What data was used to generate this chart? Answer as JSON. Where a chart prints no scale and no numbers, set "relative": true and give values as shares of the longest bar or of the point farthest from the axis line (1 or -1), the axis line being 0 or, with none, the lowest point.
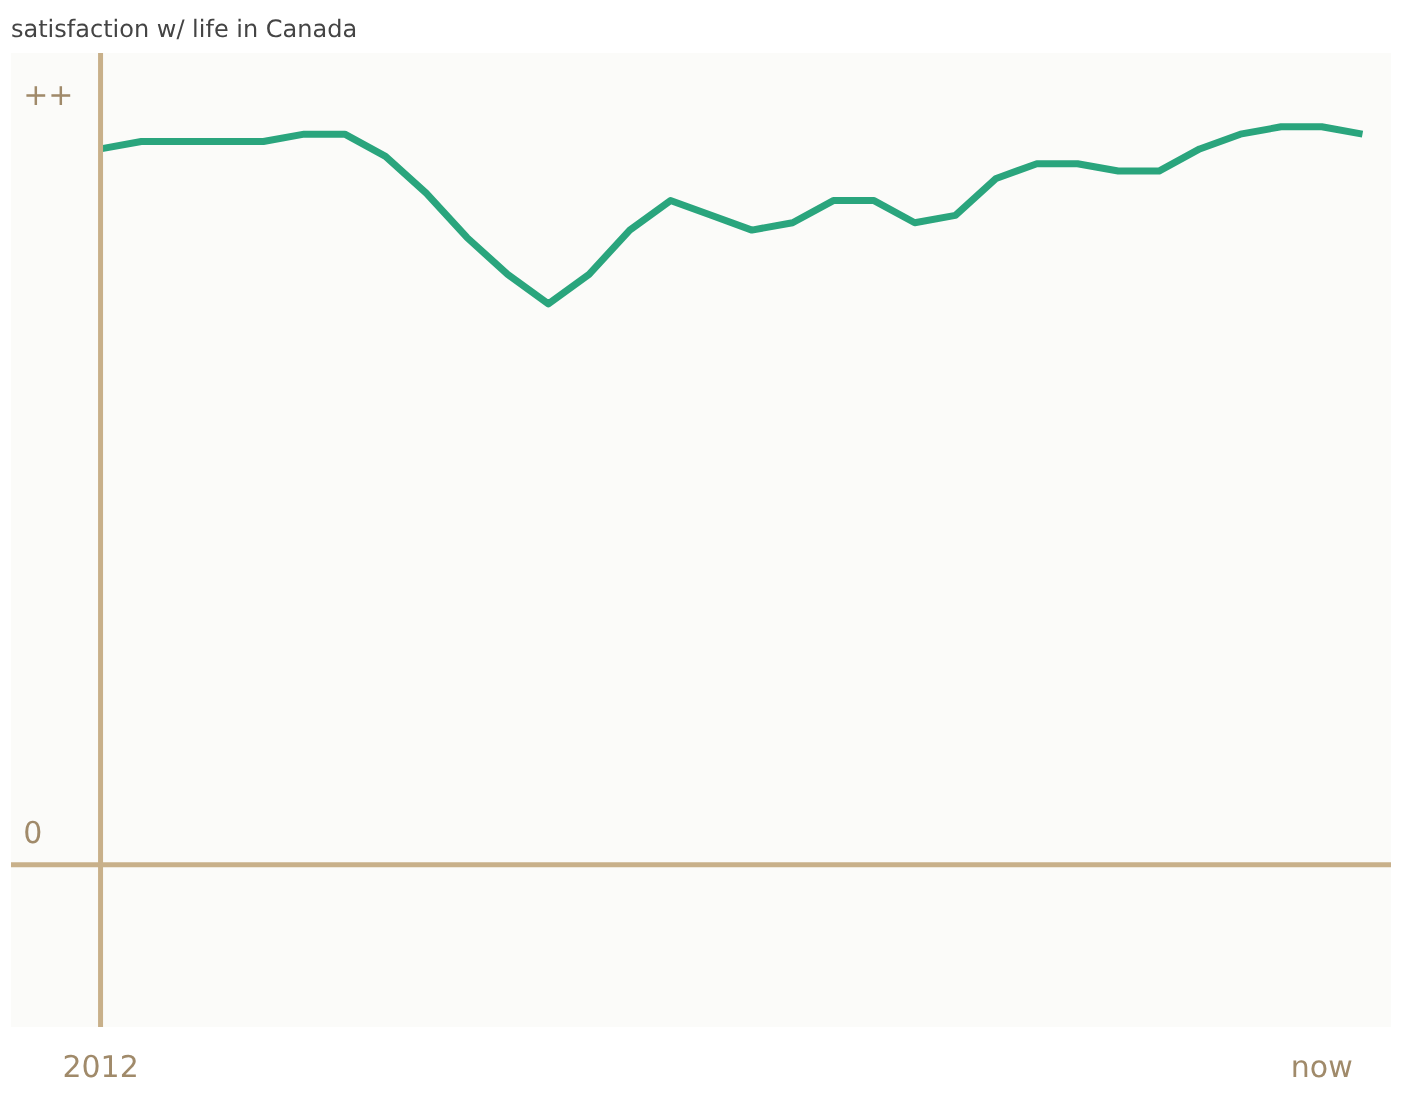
{
  "chart_data": {
    "type": "line",
    "title": "satisfaction w/ life in Canada",
    "relative": true,
    "categories": [
      "2012",
      null,
      null,
      null,
      null,
      null,
      null,
      null,
      null,
      null,
      null,
      null,
      null,
      null,
      null,
      null,
      null,
      null,
      null,
      null,
      null,
      null,
      null,
      null,
      null,
      null,
      null,
      null,
      null,
      null,
      "now",
      null
    ],
    "series": [
      {
        "color": "#2aa57d",
        "values": [
          0.97,
          0.98,
          0.98,
          0.98,
          0.98,
          0.99,
          0.99,
          0.96,
          0.91,
          0.85,
          0.8,
          0.76,
          0.8,
          0.86,
          0.9,
          0.88,
          0.86,
          0.87,
          0.9,
          0.9,
          0.87,
          0.88,
          0.93,
          0.95,
          0.95,
          0.94,
          0.94,
          0.97,
          0.99,
          1,
          1,
          0.99
        ]
      }
    ],
    "annotations": [
      "++",
      "0"
    ],
    "marker": "none",
    "line_style": "solid"
  }
}
